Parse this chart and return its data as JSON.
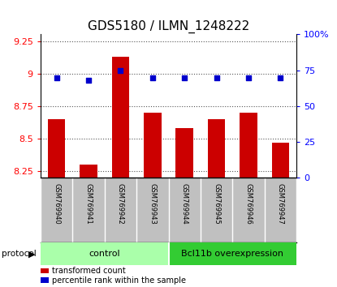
{
  "title": "GDS5180 / ILMN_1248222",
  "samples": [
    "GSM769940",
    "GSM769941",
    "GSM769942",
    "GSM769943",
    "GSM769944",
    "GSM769945",
    "GSM769946",
    "GSM769947"
  ],
  "bar_values": [
    8.65,
    8.3,
    9.13,
    8.7,
    8.58,
    8.65,
    8.7,
    8.47
  ],
  "percentile_values": [
    70,
    68,
    75,
    70,
    70,
    70,
    70,
    70
  ],
  "ylim_left": [
    8.2,
    9.3
  ],
  "ylim_right": [
    0,
    100
  ],
  "yticks_left": [
    8.25,
    8.5,
    8.75,
    9.0,
    9.25
  ],
  "ytick_labels_left": [
    "8.25",
    "8.5",
    "8.75",
    "9",
    "9.25"
  ],
  "yticks_right": [
    0,
    25,
    50,
    75,
    100
  ],
  "ytick_labels_right": [
    "0",
    "25",
    "50",
    "75",
    "100%"
  ],
  "bar_color": "#cc0000",
  "percentile_color": "#0000cc",
  "bar_bottom": 8.2,
  "group_ranges": [
    [
      0,
      3
    ],
    [
      4,
      7
    ]
  ],
  "group_labels": [
    "control",
    "Bcl11b overexpression"
  ],
  "group_colors": [
    "#aaffaa",
    "#33cc33"
  ],
  "protocol_label": "protocol",
  "legend_items": [
    {
      "label": "transformed count",
      "color": "#cc0000"
    },
    {
      "label": "percentile rank within the sample",
      "color": "#0000cc"
    }
  ],
  "sample_area_color": "#c0c0c0",
  "dotted_line_color": "#555555",
  "background_color": "#ffffff",
  "title_fontsize": 11,
  "tick_fontsize": 8,
  "sample_fontsize": 6,
  "group_fontsize": 8,
  "legend_fontsize": 7
}
